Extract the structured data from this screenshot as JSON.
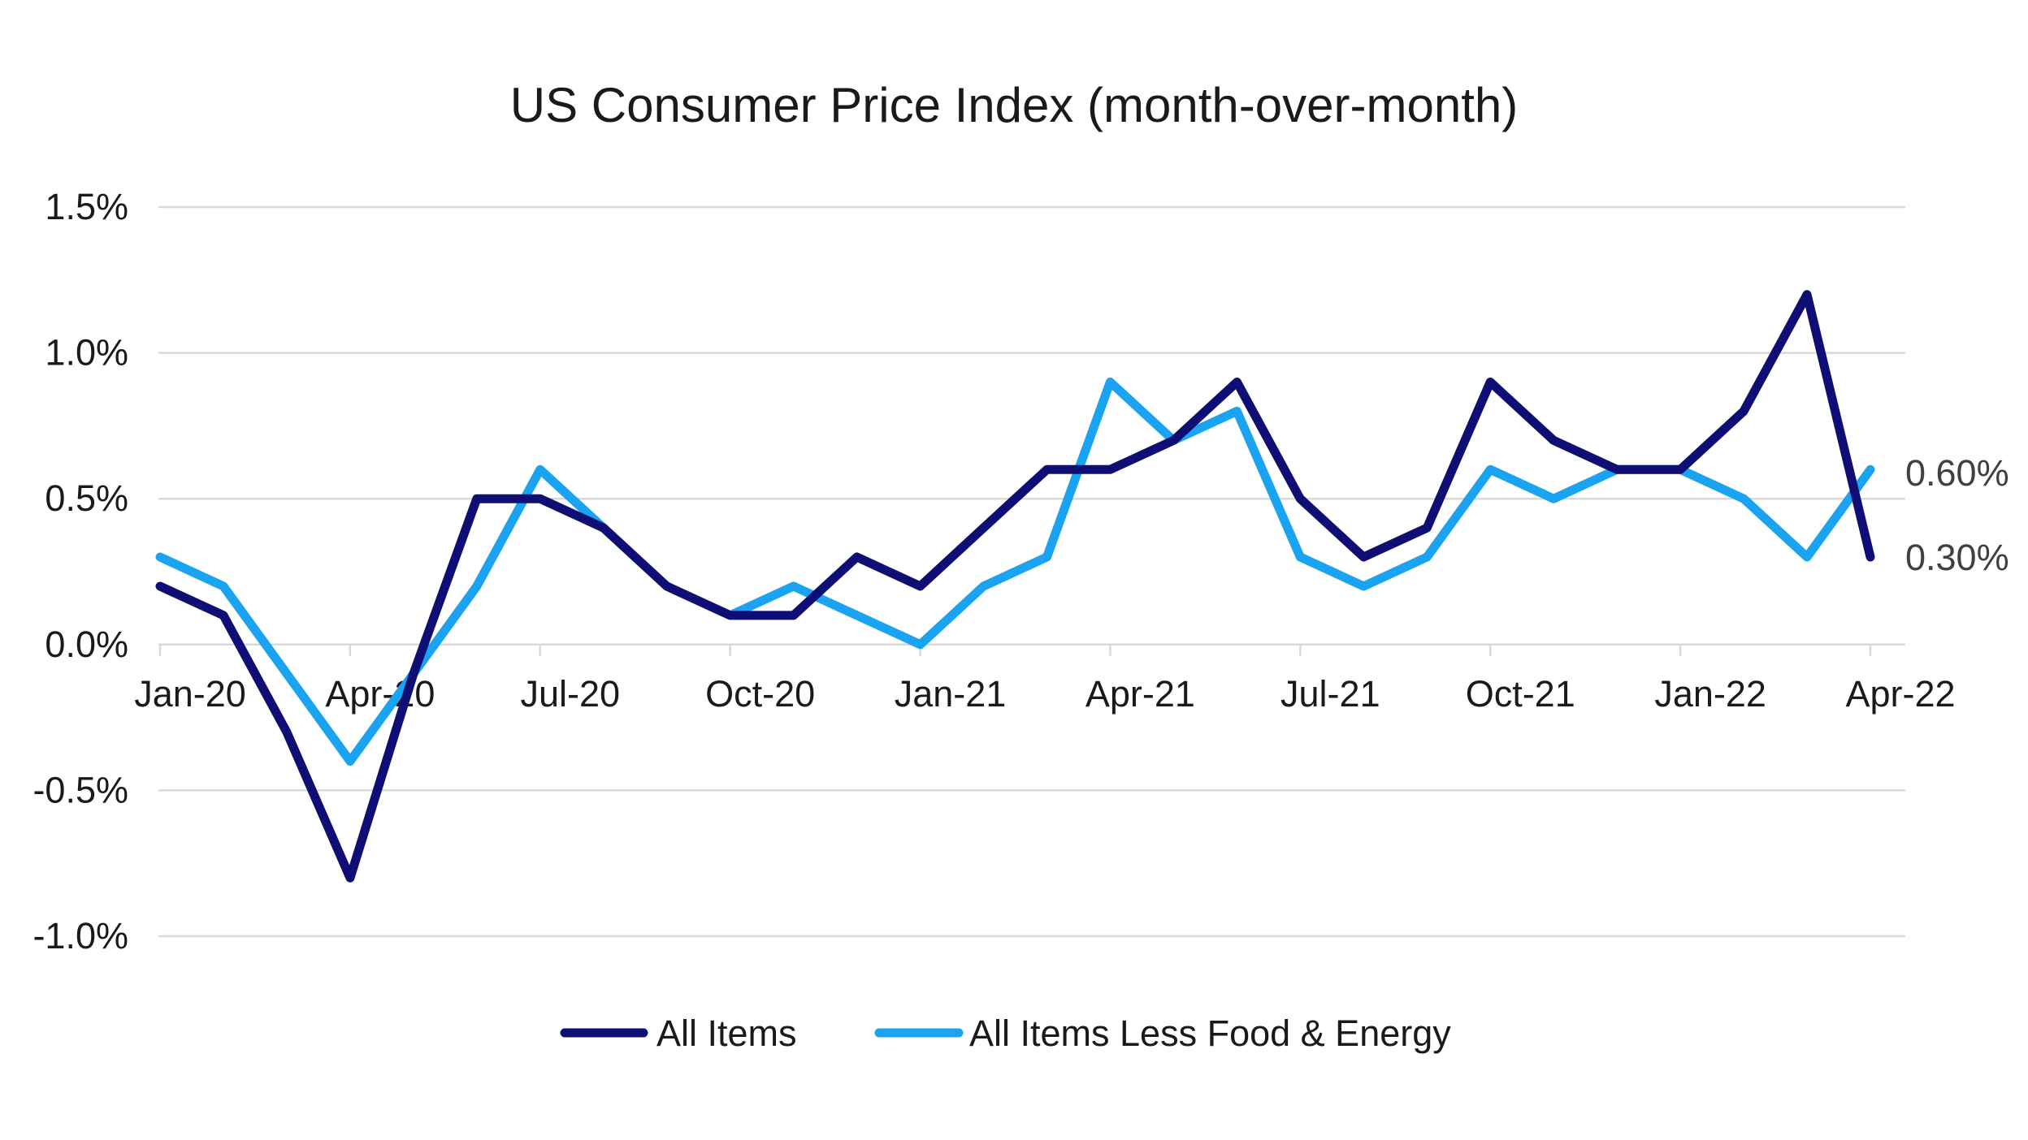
{
  "chart_data": {
    "type": "line",
    "title": "US Consumer Price Index (month-over-month)",
    "xlabel": "",
    "ylabel": "",
    "ylim": [
      -1.0,
      1.5
    ],
    "y_ticks": [
      "1.5%",
      "1.0%",
      "0.5%",
      "0.0%",
      "-0.5%",
      "-1.0%"
    ],
    "y_tick_values": [
      1.5,
      1.0,
      0.5,
      0.0,
      -0.5,
      -1.0
    ],
    "x": [
      "Jan-20",
      "Feb-20",
      "Mar-20",
      "Apr-20",
      "May-20",
      "Jun-20",
      "Jul-20",
      "Aug-20",
      "Sep-20",
      "Oct-20",
      "Nov-20",
      "Dec-20",
      "Jan-21",
      "Feb-21",
      "Mar-21",
      "Apr-21",
      "May-21",
      "Jun-21",
      "Jul-21",
      "Aug-21",
      "Sep-21",
      "Oct-21",
      "Nov-21",
      "Dec-21",
      "Jan-22",
      "Feb-22",
      "Mar-22",
      "Apr-22"
    ],
    "x_tick_labels": [
      "Jan-20",
      "Apr-20",
      "Jul-20",
      "Oct-20",
      "Jan-21",
      "Apr-21",
      "Jul-21",
      "Oct-21",
      "Jan-22",
      "Apr-22"
    ],
    "x_tick_indices": [
      0,
      3,
      6,
      9,
      12,
      15,
      18,
      21,
      24,
      27
    ],
    "grid": true,
    "legend_position": "bottom",
    "series": [
      {
        "name": "All Items",
        "color": "#0e0e74",
        "values": [
          0.2,
          0.1,
          -0.3,
          -0.8,
          -0.1,
          0.5,
          0.5,
          0.4,
          0.2,
          0.1,
          0.1,
          0.3,
          0.2,
          0.4,
          0.6,
          0.6,
          0.7,
          0.9,
          0.5,
          0.3,
          0.4,
          0.9,
          0.7,
          0.6,
          0.6,
          0.8,
          1.2,
          0.3
        ],
        "end_label": "0.30%"
      },
      {
        "name": "All Items Less Food & Energy",
        "color": "#1aa3f0",
        "values": [
          0.3,
          0.2,
          -0.1,
          -0.4,
          -0.1,
          0.2,
          0.6,
          0.4,
          0.2,
          0.1,
          0.2,
          0.1,
          0.0,
          0.2,
          0.3,
          0.9,
          0.7,
          0.8,
          0.3,
          0.2,
          0.3,
          0.6,
          0.5,
          0.6,
          0.6,
          0.5,
          0.3,
          0.6
        ],
        "end_label": "0.60%"
      }
    ]
  }
}
